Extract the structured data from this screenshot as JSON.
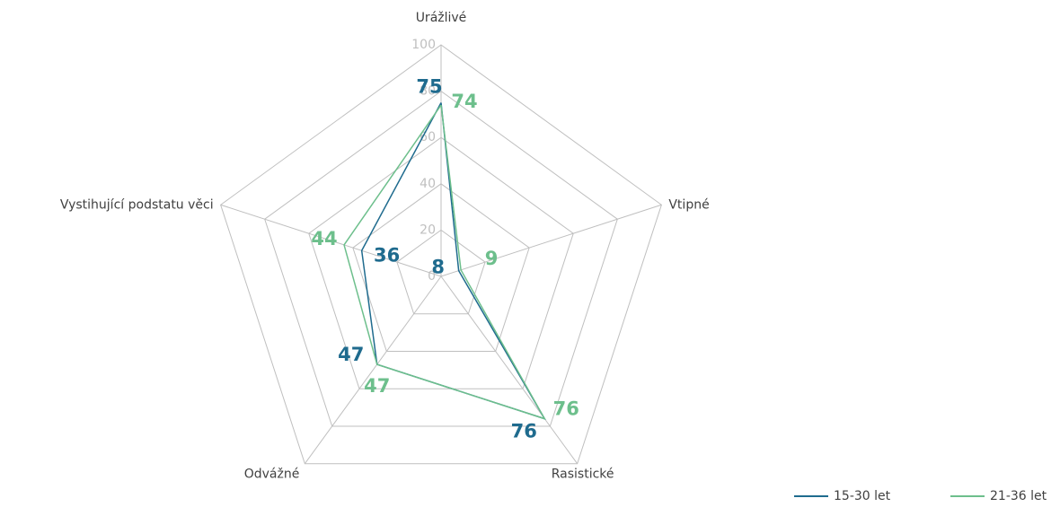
{
  "chart_data": {
    "type": "radar",
    "categories": [
      "Urážlivé",
      "Vtipné",
      "Rasistické",
      "Odvážné",
      "Vystihující podstatu věci"
    ],
    "series": [
      {
        "name": "15-30 let",
        "color": "#1f6b8e",
        "values": [
          75,
          8,
          76,
          47,
          36
        ]
      },
      {
        "name": "21-36 let",
        "color": "#6dbf8c",
        "values": [
          74,
          9,
          76,
          47,
          44
        ]
      }
    ],
    "ylim": [
      0,
      100
    ],
    "yticks": [
      0,
      20,
      40,
      60,
      80,
      100
    ],
    "grid": true,
    "legend": "bottom-right"
  }
}
